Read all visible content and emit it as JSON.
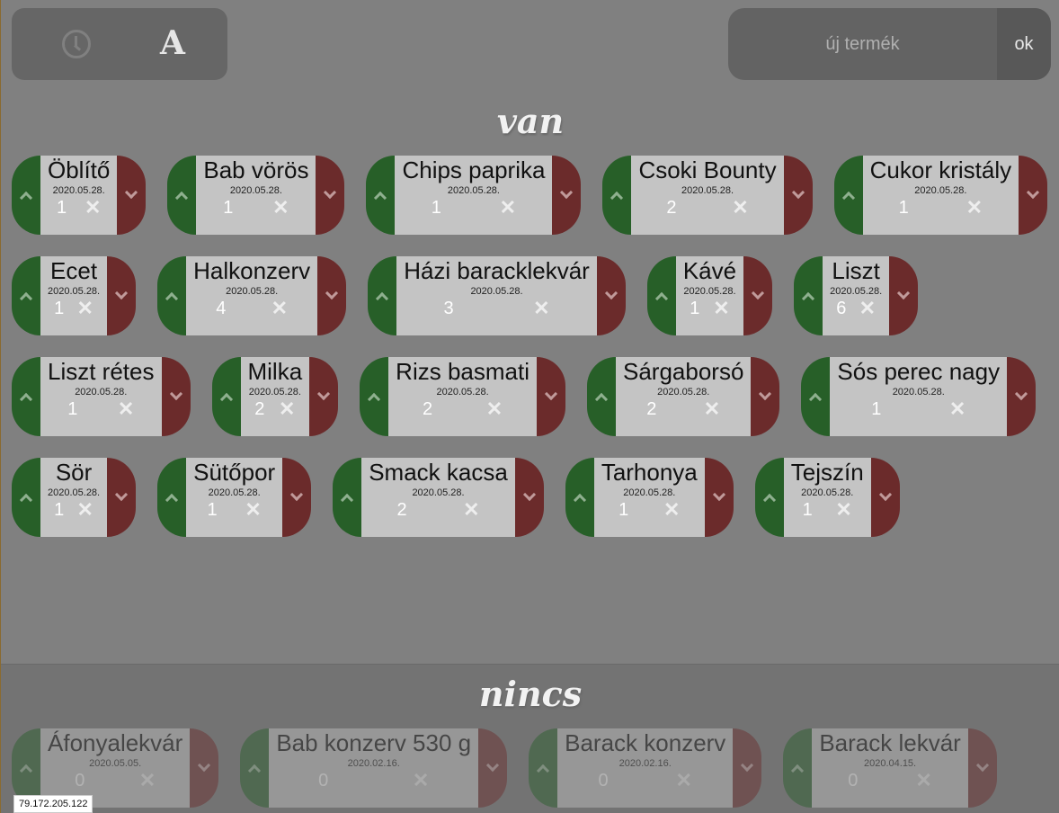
{
  "toolbar": {
    "clock_icon": "clock-icon",
    "sort_label": "A",
    "new_item_placeholder": "új termék",
    "ok_label": "ok"
  },
  "colors": {
    "increase": "#275f28",
    "decrease": "#6b2b2b",
    "card": "#c4c4c4",
    "background": "#808080"
  },
  "van": {
    "title": "van",
    "items": [
      {
        "name": "Öblítő",
        "date": "2020.05.28.",
        "count": "1"
      },
      {
        "name": "Bab vörös",
        "date": "2020.05.28.",
        "count": "1"
      },
      {
        "name": "Chips paprika",
        "date": "2020.05.28.",
        "count": "1"
      },
      {
        "name": "Csoki Bounty",
        "date": "2020.05.28.",
        "count": "2"
      },
      {
        "name": "Cukor kristály",
        "date": "2020.05.28.",
        "count": "1"
      },
      {
        "name": "Ecet",
        "date": "2020.05.28.",
        "count": "1"
      },
      {
        "name": "Halkonzerv",
        "date": "2020.05.28.",
        "count": "4"
      },
      {
        "name": "Házi baracklekvár",
        "date": "2020.05.28.",
        "count": "3"
      },
      {
        "name": "Kávé",
        "date": "2020.05.28.",
        "count": "1"
      },
      {
        "name": "Liszt",
        "date": "2020.05.28.",
        "count": "6"
      },
      {
        "name": "Liszt rétes",
        "date": "2020.05.28.",
        "count": "1"
      },
      {
        "name": "Milka",
        "date": "2020.05.28.",
        "count": "2"
      },
      {
        "name": "Rizs basmati",
        "date": "2020.05.28.",
        "count": "2"
      },
      {
        "name": "Sárgaborsó",
        "date": "2020.05.28.",
        "count": "2"
      },
      {
        "name": "Sós perec nagy",
        "date": "2020.05.28.",
        "count": "1"
      },
      {
        "name": "Sör",
        "date": "2020.05.28.",
        "count": "1"
      },
      {
        "name": "Sütőpor",
        "date": "2020.05.28.",
        "count": "1"
      },
      {
        "name": "Smack kacsa",
        "date": "2020.05.28.",
        "count": "2"
      },
      {
        "name": "Tarhonya",
        "date": "2020.05.28.",
        "count": "1"
      },
      {
        "name": "Tejszín",
        "date": "2020.05.28.",
        "count": "1"
      }
    ]
  },
  "nincs": {
    "title": "nincs",
    "items": [
      {
        "name": "Áfonyalekvár",
        "date": "2020.05.05.",
        "count": "0"
      },
      {
        "name": "Bab konzerv 530 g",
        "date": "2020.02.16.",
        "count": "0"
      },
      {
        "name": "Barack konzerv",
        "date": "2020.02.16.",
        "count": "0"
      },
      {
        "name": "Barack lekvár",
        "date": "2020.04.15.",
        "count": "0"
      }
    ]
  },
  "status": {
    "ip": "79.172.205.122"
  }
}
